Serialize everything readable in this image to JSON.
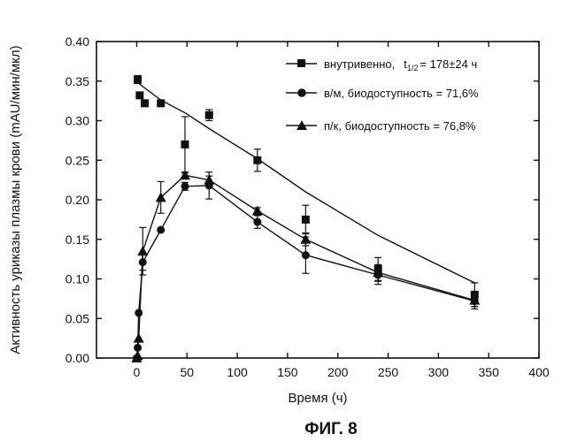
{
  "figure_caption": "ФИГ. 8",
  "chart_data": {
    "type": "line",
    "xlabel": "Время (ч)",
    "ylabel": "Активность уриказы плазмы крови (mAU/мин/мкл)",
    "xlim": [
      -40,
      400
    ],
    "ylim": [
      0,
      0.4
    ],
    "x_ticks": [
      0,
      50,
      100,
      150,
      200,
      250,
      300,
      350,
      400
    ],
    "x_tick_labels": [
      "0",
      "50",
      "100",
      "150",
      "200",
      "250",
      "300",
      "350",
      "400"
    ],
    "y_ticks": [
      0,
      0.05,
      0.1,
      0.15,
      0.2,
      0.25,
      0.3,
      0.35,
      0.4
    ],
    "y_tick_labels": [
      "0.00",
      "0.05",
      "0.10",
      "0.15",
      "0.20",
      "0.25",
      "0.30",
      "0.35",
      "0.40"
    ],
    "grid": false,
    "legend_position": "top-right",
    "series": [
      {
        "name": "внутривенно, t1/2 = 178±24 ч",
        "marker": "square",
        "points": [
          {
            "x": 1,
            "y": 0.352,
            "err": 0.005
          },
          {
            "x": 3,
            "y": 0.332,
            "err": 0.003
          },
          {
            "x": 8,
            "y": 0.322,
            "err": 0.0
          },
          {
            "x": 24,
            "y": 0.322,
            "err": 0.004
          },
          {
            "x": 48,
            "y": 0.27,
            "err": 0.035
          },
          {
            "x": 72,
            "y": 0.307,
            "err": 0.007
          },
          {
            "x": 120,
            "y": 0.25,
            "err": 0.014
          },
          {
            "x": 168,
            "y": 0.175,
            "err": 0.018
          },
          {
            "x": 240,
            "y": 0.112,
            "err": 0.015
          },
          {
            "x": 336,
            "y": 0.08,
            "err": 0.015
          }
        ],
        "fit": [
          {
            "x": 1,
            "y": 0.348
          },
          {
            "x": 24,
            "y": 0.326
          },
          {
            "x": 48,
            "y": 0.31
          },
          {
            "x": 72,
            "y": 0.29
          },
          {
            "x": 120,
            "y": 0.252
          },
          {
            "x": 168,
            "y": 0.21
          },
          {
            "x": 240,
            "y": 0.155
          },
          {
            "x": 336,
            "y": 0.095
          }
        ]
      },
      {
        "name": "в/м, биодоступность = 71,6%",
        "marker": "circle",
        "points": [
          {
            "x": 0,
            "y": 0.0,
            "err": 0.0
          },
          {
            "x": 1,
            "y": 0.013,
            "err": 0.0
          },
          {
            "x": 2,
            "y": 0.057,
            "err": 0.0
          },
          {
            "x": 6,
            "y": 0.121,
            "err": 0.01
          },
          {
            "x": 24,
            "y": 0.162,
            "err": 0.0
          },
          {
            "x": 48,
            "y": 0.217,
            "err": 0.005
          },
          {
            "x": 72,
            "y": 0.218,
            "err": 0.017
          },
          {
            "x": 120,
            "y": 0.172,
            "err": 0.008
          },
          {
            "x": 168,
            "y": 0.13,
            "err": 0.023
          },
          {
            "x": 240,
            "y": 0.105,
            "err": 0.012
          },
          {
            "x": 336,
            "y": 0.072,
            "err": 0.01
          }
        ]
      },
      {
        "name": "п/к, биодоступность = 76,8%",
        "marker": "triangle",
        "points": [
          {
            "x": 0,
            "y": 0.0,
            "err": 0.0
          },
          {
            "x": 1,
            "y": 0.003,
            "err": 0.0
          },
          {
            "x": 2,
            "y": 0.025,
            "err": 0.0
          },
          {
            "x": 6,
            "y": 0.135,
            "err": 0.03
          },
          {
            "x": 24,
            "y": 0.203,
            "err": 0.02
          },
          {
            "x": 48,
            "y": 0.231,
            "err": 0.003
          },
          {
            "x": 72,
            "y": 0.225,
            "err": 0.005
          },
          {
            "x": 120,
            "y": 0.186,
            "err": 0.004
          },
          {
            "x": 168,
            "y": 0.15,
            "err": 0.008
          },
          {
            "x": 240,
            "y": 0.108,
            "err": 0.01
          },
          {
            "x": 336,
            "y": 0.073,
            "err": 0.008
          }
        ]
      }
    ],
    "legend": {
      "entries": [
        {
          "marker": "square",
          "label_prefix": "внутривенно,",
          "label_t": "t",
          "label_sub": "1/2",
          "label_value": "= 178±24 ч"
        },
        {
          "marker": "circle",
          "label": "в/м, биодоступность = 71,6%"
        },
        {
          "marker": "triangle",
          "label": "п/к, биодоступность = 76,8%"
        }
      ]
    }
  }
}
